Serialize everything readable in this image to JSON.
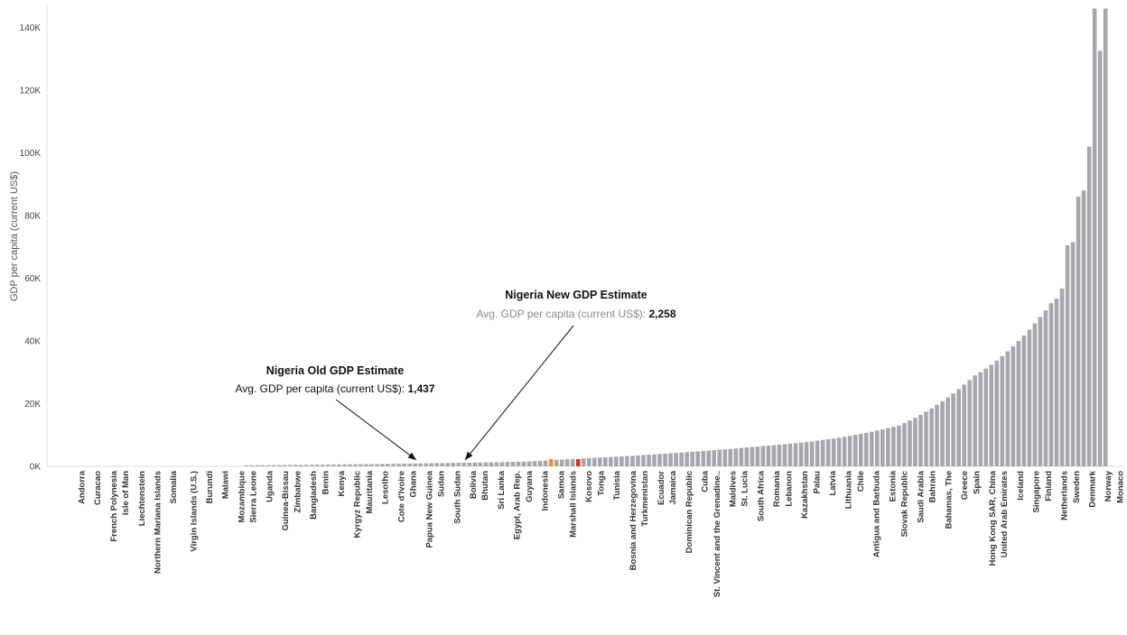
{
  "chart_data": {
    "type": "bar",
    "title": "",
    "xlabel": "",
    "ylabel": "GDP per capita (current US$)",
    "ylim": [
      0,
      147000
    ],
    "yticks": [
      0,
      20000,
      40000,
      60000,
      80000,
      100000,
      120000,
      140000
    ],
    "ytick_labels": [
      "0K",
      "20K",
      "40K",
      "60K",
      "80K",
      "100K",
      "120K",
      "140K"
    ],
    "grid": false,
    "bar_count": 195,
    "colors": {
      "bar": "#a3a8ab",
      "old_estimate": "#e8923a",
      "new_estimate": "#d0342c",
      "sub_text": "#8c8c8c"
    },
    "values_by_bar": [
      {
        "from": 0,
        "to": 35,
        "start": 0,
        "end": 0
      },
      {
        "from": 36,
        "to": 85,
        "start": 300,
        "end": 1400
      },
      {
        "from": 86,
        "to": 95,
        "start": 1450,
        "end": 2250
      },
      {
        "from": 96,
        "to": 140,
        "start": 2350,
        "end": 7900
      },
      {
        "from": 141,
        "to": 155,
        "start": 8200,
        "end": 12600
      },
      {
        "from": 156,
        "to": 170,
        "start": 13000,
        "end": 29000
      },
      {
        "from": 171,
        "to": 184,
        "start": 30000,
        "end": 52000
      },
      {
        "from": 185,
        "to": 194,
        "start": 53500,
        "end": 146000
      }
    ],
    "value_overrides": [
      {
        "index": 186,
        "value": 56700
      },
      {
        "index": 187,
        "value": 70500
      },
      {
        "index": 188,
        "value": 71500
      },
      {
        "index": 189,
        "value": 86000
      },
      {
        "index": 190,
        "value": 88000
      },
      {
        "index": 191,
        "value": 102000
      },
      {
        "index": 192,
        "value": 146000
      }
    ],
    "labeled_categories": [
      {
        "label": "Andorra",
        "index": 3
      },
      {
        "label": "Curacao",
        "index": 7
      },
      {
        "label": "French Polynesia",
        "index": 11
      },
      {
        "label": "Isle of Man",
        "index": 14
      },
      {
        "label": "Liechtenstein",
        "index": 18
      },
      {
        "label": "Northern Mariana Islands",
        "index": 22
      },
      {
        "label": "Somalia",
        "index": 26
      },
      {
        "label": "Virgin Islands (U.S.)",
        "index": 31
      },
      {
        "label": "Burundi",
        "index": 35
      },
      {
        "label": "Malawi",
        "index": 39
      },
      {
        "label": "Mozambique",
        "index": 43
      },
      {
        "label": "Sierra Leone",
        "index": 46
      },
      {
        "label": "Uganda",
        "index": 50
      },
      {
        "label": "Guinea-Bissau",
        "index": 54
      },
      {
        "label": "Zimbabwe",
        "index": 57
      },
      {
        "label": "Bangladesh",
        "index": 61
      },
      {
        "label": "Benin",
        "index": 64
      },
      {
        "label": "Kenya",
        "index": 68
      },
      {
        "label": "Kyrgyz Republic",
        "index": 72
      },
      {
        "label": "Mauritania",
        "index": 75
      },
      {
        "label": "Lesotho",
        "index": 79
      },
      {
        "label": "Cote d'Ivoire",
        "index": 83
      },
      {
        "label": "Ghana",
        "index": 86
      },
      {
        "label": "Papua New Guinea",
        "index": 90
      },
      {
        "label": "Sudan",
        "index": 93
      },
      {
        "label": "South Sudan",
        "index": 97
      },
      {
        "label": "Bolivia",
        "index": 101
      },
      {
        "label": "Bhutan",
        "index": 104
      },
      {
        "label": "Sri Lanka",
        "index": 108
      },
      {
        "label": "Egypt, Arab Rep.",
        "index": 112
      },
      {
        "label": "Guyana",
        "index": 115
      },
      {
        "label": "Indonesia",
        "index": 119
      },
      {
        "label": "Samoa",
        "index": 123
      },
      {
        "label": "Marshall Islands",
        "index": 126
      },
      {
        "label": "Kosovo",
        "index": 130
      },
      {
        "label": "Tonga",
        "index": 133
      },
      {
        "label": "Tunisia",
        "index": 137
      },
      {
        "label": "Bosnia and Herzegovina",
        "index": 141
      },
      {
        "label": "Turkmenistan",
        "index": 144
      },
      {
        "label": "Ecuador",
        "index": 148
      },
      {
        "label": "Jamaica",
        "index": 151
      },
      {
        "label": "Dominican Republic",
        "index": 155
      },
      {
        "label": "Cuba",
        "index": 159
      },
      {
        "label": "St. Vincent and the Grenadine..",
        "index": 162
      },
      {
        "label": "Maldives",
        "index": 166
      },
      {
        "label": "St. Lucia",
        "index": 169
      },
      {
        "label": "South Africa",
        "index": 173
      },
      {
        "label": "Romania",
        "index": 177
      },
      {
        "label": "Lebanon",
        "index": 180
      },
      {
        "label": "Kazakhstan",
        "index": 184
      },
      {
        "label": "Palau",
        "index": 187
      },
      {
        "label": "Latvia",
        "index": 191
      },
      {
        "label": "Lithuania",
        "index": 195
      },
      {
        "label": "Chile",
        "index": 198
      },
      {
        "label": "Antigua and Barbuda",
        "index": 202
      },
      {
        "label": "Estonia",
        "index": 206
      },
      {
        "label": "Slovak Republic",
        "index": 209
      },
      {
        "label": "Saudi Arabia",
        "index": 213
      },
      {
        "label": "Bahrain",
        "index": 216
      },
      {
        "label": "Bahamas, The",
        "index": 220
      },
      {
        "label": "Greece",
        "index": 224
      },
      {
        "label": "Spain",
        "index": 227
      },
      {
        "label": "Hong Kong SAR, China",
        "index": 231
      },
      {
        "label": "United Arab Emirates",
        "index": 234
      },
      {
        "label": "Iceland",
        "index": 238
      },
      {
        "label": "Singapore",
        "index": 242
      },
      {
        "label": "Finland",
        "index": 245
      },
      {
        "label": "Netherlands",
        "index": 249
      },
      {
        "label": "Sweden",
        "index": 252
      },
      {
        "label": "Denmark",
        "index": 256
      },
      {
        "label": "Norway",
        "index": 260
      },
      {
        "label": "Monaco",
        "index": 263
      }
    ],
    "highlights": [
      {
        "name": "old_estimate",
        "index": 92,
        "value": 1437
      },
      {
        "name": "new_estimate",
        "index": 97,
        "value": 2258
      }
    ],
    "annotations": [
      {
        "id": "old",
        "title": "Nigeria Old GDP Estimate",
        "subtitle_prefix": "Avg. GDP per capita (current US$): ",
        "value_text": "1,437",
        "target_index": 92
      },
      {
        "id": "new",
        "title": "Nigeria New GDP Estimate",
        "subtitle_prefix": "Avg. GDP per capita (current US$): ",
        "value_text": "2,258",
        "target_index": 97
      }
    ]
  }
}
